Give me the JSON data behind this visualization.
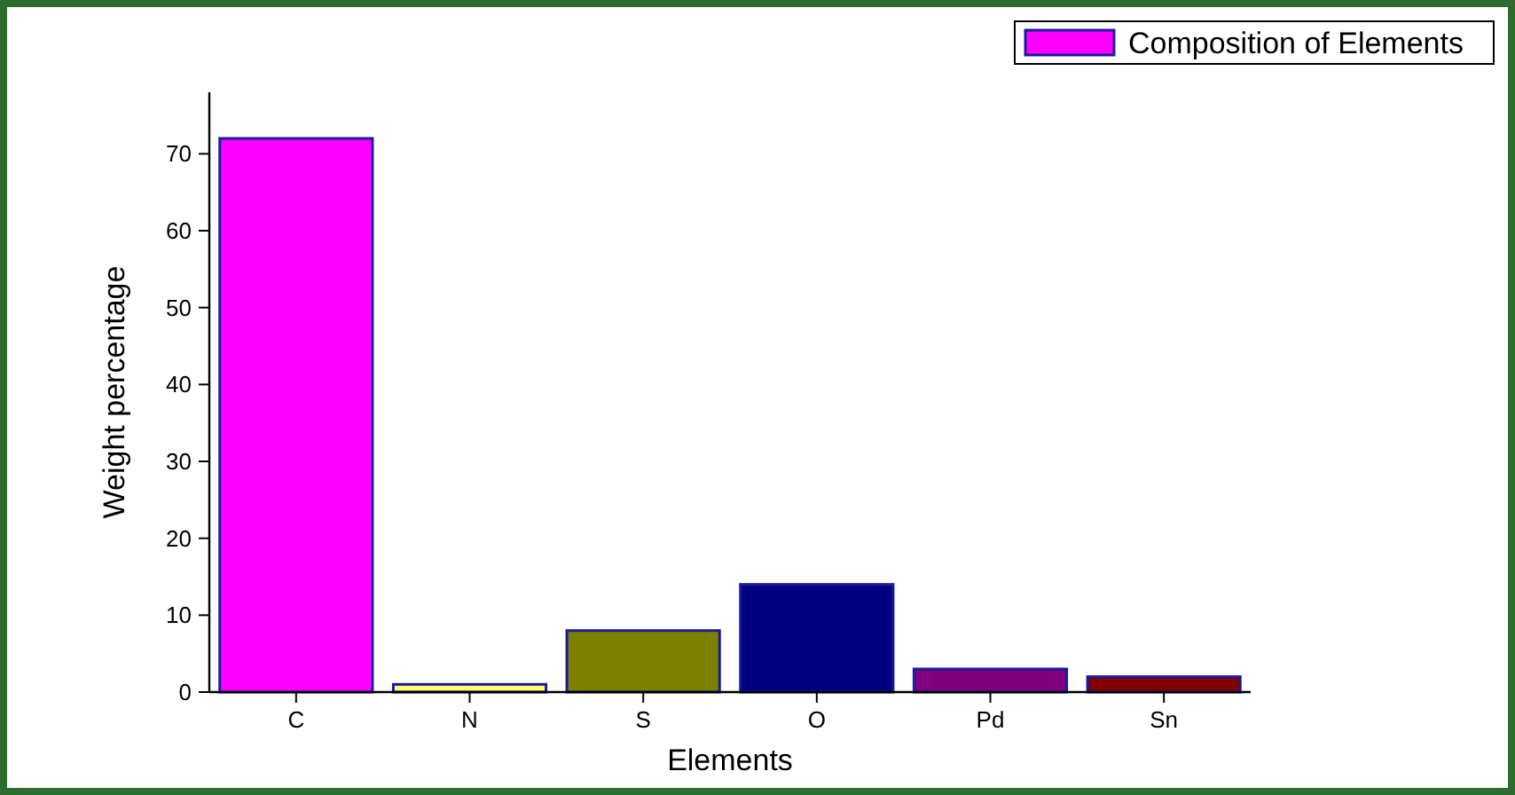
{
  "chart_data": {
    "type": "bar",
    "xlabel": "Elements",
    "ylabel": "Weight percentage",
    "categories": [
      "C",
      "N",
      "S",
      "O",
      "Pd",
      "Sn"
    ],
    "series": [
      {
        "name": "Composition of Elements",
        "color": "#ff00ff",
        "colors": [
          "#ff00ff",
          "#ffff66",
          "#808000",
          "#000080",
          "#800080",
          "#800000"
        ],
        "values": [
          72,
          1,
          8,
          14,
          3,
          2
        ]
      }
    ],
    "ylim": [
      0,
      78
    ],
    "yticks": [
      0,
      10,
      20,
      30,
      40,
      50,
      60,
      70
    ],
    "grid": false,
    "legend": "top right"
  }
}
